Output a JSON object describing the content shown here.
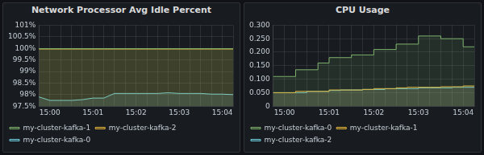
{
  "chart_data": [
    {
      "type": "area",
      "title": "Network Processor Avg Idle Percent",
      "line_style": "solid",
      "grid": true,
      "legend": "bottom",
      "categories": [
        null,
        "15:00",
        null,
        null,
        null,
        "15:01",
        null,
        null,
        null,
        "15:02",
        null,
        null,
        null,
        "15:03",
        null,
        null,
        null,
        "15:04",
        null
      ],
      "series": [
        {
          "name": "my-cluster-kafka-1",
          "color": "#7eb26d",
          "values": [
            99.99,
            99.99,
            99.99,
            99.99,
            99.99,
            99.99,
            99.99,
            99.99,
            99.99,
            99.99,
            99.99,
            99.99,
            99.99,
            99.99,
            99.99,
            99.99,
            99.99,
            99.99,
            99.99
          ]
        },
        {
          "name": "my-cluster-kafka-2",
          "color": "#eab839",
          "values": [
            99.97,
            99.97,
            99.97,
            99.97,
            99.97,
            99.97,
            99.97,
            99.97,
            99.97,
            99.97,
            99.97,
            99.97,
            99.97,
            99.97,
            99.97,
            99.97,
            99.97,
            99.97,
            99.97
          ]
        },
        {
          "name": "my-cluster-kafka-0",
          "color": "#6ed0e0",
          "values": [
            97.9,
            97.75,
            97.75,
            97.75,
            97.78,
            97.85,
            97.85,
            98.05,
            98.05,
            98.05,
            98.05,
            98.05,
            98.08,
            98.05,
            98.05,
            98.05,
            98.02,
            98.02,
            98.0
          ]
        }
      ],
      "ylim": [
        97.5,
        101
      ],
      "yticks": [
        {
          "value": 97.5,
          "label": "97.5%"
        },
        {
          "value": 98,
          "label": "98%"
        },
        {
          "value": 98.5,
          "label": "98.5%"
        },
        {
          "value": 99,
          "label": "99%"
        },
        {
          "value": 99.5,
          "label": "99.5%"
        },
        {
          "value": 100,
          "label": "100%"
        },
        {
          "value": 100.5,
          "label": "100.5%"
        },
        {
          "value": 101,
          "label": "101%"
        }
      ]
    },
    {
      "type": "area",
      "title": "CPU Usage",
      "line_style": "step",
      "grid": true,
      "legend": "bottom",
      "categories": [
        null,
        "15:00",
        null,
        null,
        null,
        "15:01",
        null,
        null,
        null,
        "15:02",
        null,
        null,
        null,
        "15:03",
        null,
        null,
        null,
        "15:04",
        null
      ],
      "series": [
        {
          "name": "my-cluster-kafka-0",
          "color": "#7eb26d",
          "values": [
            0.11,
            0.11,
            0.135,
            0.135,
            0.16,
            0.18,
            0.18,
            0.19,
            0.19,
            0.21,
            0.21,
            0.23,
            0.23,
            0.26,
            0.26,
            0.25,
            0.25,
            0.22,
            0.22
          ]
        },
        {
          "name": "my-cluster-kafka-1",
          "color": "#eab839",
          "values": [
            0.05,
            0.05,
            0.055,
            0.055,
            0.055,
            0.06,
            0.06,
            0.06,
            0.062,
            0.065,
            0.065,
            0.068,
            0.07,
            0.07,
            0.07,
            0.072,
            0.072,
            0.075,
            0.075
          ]
        },
        {
          "name": "my-cluster-kafka-2",
          "color": "#6ed0e0",
          "values": [
            0.05,
            0.05,
            0.05,
            0.055,
            0.055,
            0.058,
            0.06,
            0.06,
            0.062,
            0.062,
            0.065,
            0.065,
            0.065,
            0.068,
            0.068,
            0.068,
            0.07,
            0.07,
            0.07
          ]
        }
      ],
      "ylim": [
        0,
        0.3
      ],
      "yticks": [
        0,
        {
          "value": 0.05,
          "label": "0.050"
        },
        {
          "value": 0.1,
          "label": "0.100"
        },
        {
          "value": 0.15,
          "label": "0.150"
        },
        {
          "value": 0.2,
          "label": "0.200"
        },
        {
          "value": 0.25,
          "label": "0.250"
        },
        {
          "value": 0.3,
          "label": "0.300"
        }
      ]
    }
  ]
}
